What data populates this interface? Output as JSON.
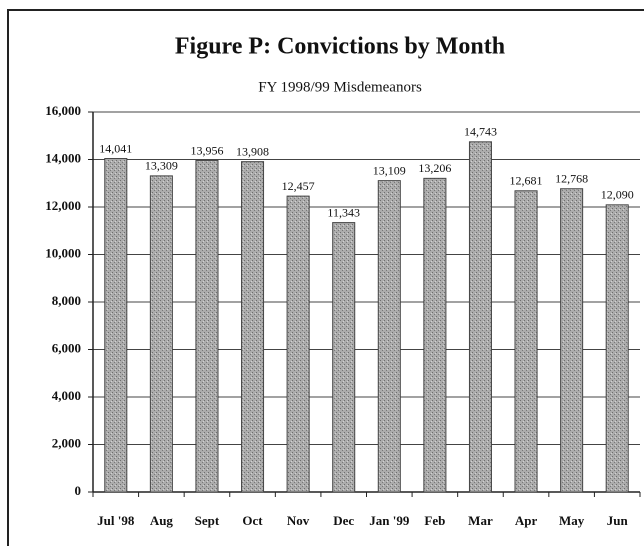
{
  "chart_data": {
    "type": "bar",
    "title": "Figure P:  Convictions by Month",
    "subtitle": "FY 1998/99 Misdemeanors",
    "categories": [
      "Jul '98",
      "Aug",
      "Sept",
      "Oct",
      "Nov",
      "Dec",
      "Jan '99",
      "Feb",
      "Mar",
      "Apr",
      "May",
      "Jun"
    ],
    "values": [
      14041,
      13309,
      13956,
      13908,
      12457,
      11343,
      13109,
      13206,
      14743,
      12681,
      12768,
      12090
    ],
    "value_labels": [
      "14,041",
      "13,309",
      "13,956",
      "13,908",
      "12,457",
      "11,343",
      "13,109",
      "13,206",
      "14,743",
      "12,681",
      "12,768",
      "12,090"
    ],
    "color": "#9a9a9a",
    "ylim": [
      0,
      16000
    ],
    "yticks": [
      0,
      {
        "value": 2000,
        "label": "2,000"
      },
      {
        "value": 4000,
        "label": "4,000"
      },
      {
        "value": 6000,
        "label": "6,000"
      },
      {
        "value": 8000,
        "label": "8,000"
      },
      {
        "value": 10000,
        "label": "10,000"
      },
      {
        "value": 12000,
        "label": "12,000"
      },
      {
        "value": 14000,
        "label": "14,000"
      },
      {
        "value": 16000,
        "label": "16,000"
      }
    ],
    "grid": true
  }
}
